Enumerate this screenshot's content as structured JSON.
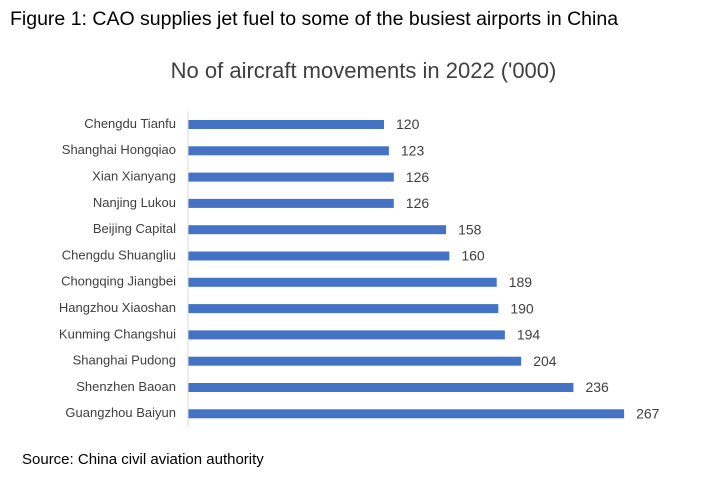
{
  "figure_title": "Figure 1: CAO supplies jet fuel to some of the busiest airports in China",
  "source": "Source: China civil aviation authority",
  "chart_data": {
    "type": "bar",
    "orientation": "horizontal",
    "title": "No of aircraft movements in 2022 ('000)",
    "categories": [
      "Chengdu Tianfu",
      "Shanghai Hongqiao",
      "Xian Xianyang",
      "Nanjing Lukou",
      "Beijing Capital",
      "Chengdu Shuangliu",
      "Chongqing Jiangbei",
      "Hangzhou Xiaoshan",
      "Kunming Changshui",
      "Shanghai Pudong",
      "Shenzhen Baoan",
      "Guangzhou Baiyun"
    ],
    "values": [
      120,
      123,
      126,
      126,
      158,
      160,
      189,
      190,
      194,
      204,
      236,
      267
    ],
    "xlim": [
      0,
      270
    ],
    "bar_color": "#4472c4",
    "data_labels": true,
    "grid": false,
    "legend": "none"
  }
}
